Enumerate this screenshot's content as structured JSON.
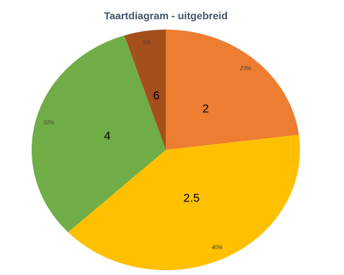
{
  "chart_data": {
    "type": "pie",
    "title": "Taartdiagram - uitgebreid",
    "categories": [
      "2",
      "2.5",
      "4",
      "6"
    ],
    "values": [
      23,
      40,
      32,
      5
    ],
    "value_labels": [
      "23%",
      "40%",
      "32%",
      "5%"
    ],
    "colors": [
      "#ed7d31",
      "#ffc000",
      "#70ad47",
      "#a5501c"
    ]
  }
}
